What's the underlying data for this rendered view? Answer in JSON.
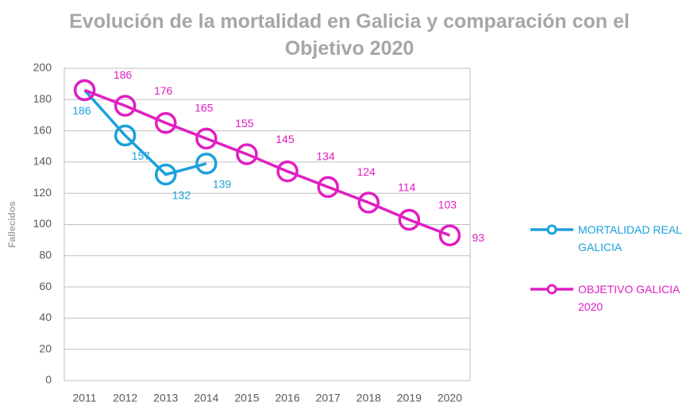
{
  "chart_data": {
    "type": "line",
    "title": "Evolución de la mortalidad en Galicia y comparación con el Objetivo 2020",
    "y_label": "Fallecidos",
    "categories": [
      "2011",
      "2012",
      "2013",
      "2014",
      "2015",
      "2016",
      "2017",
      "2018",
      "2019",
      "2020"
    ],
    "series": [
      {
        "name": "MORTALIDAD REAL GALICIA",
        "color": "#1ba1db",
        "values": [
          186,
          157,
          132,
          139,
          null,
          null,
          null,
          null,
          null,
          null
        ]
      },
      {
        "name": "OBJETIVO GALICIA 2020",
        "color": "#e01fc2",
        "values": [
          186,
          176,
          165,
          155,
          145,
          134,
          124,
          114,
          103,
          93
        ]
      }
    ],
    "ylim": [
      0,
      200
    ],
    "yticks": [
      0,
      20,
      40,
      60,
      80,
      100,
      120,
      140,
      160,
      180,
      200
    ],
    "grid": true,
    "legend": "right"
  }
}
